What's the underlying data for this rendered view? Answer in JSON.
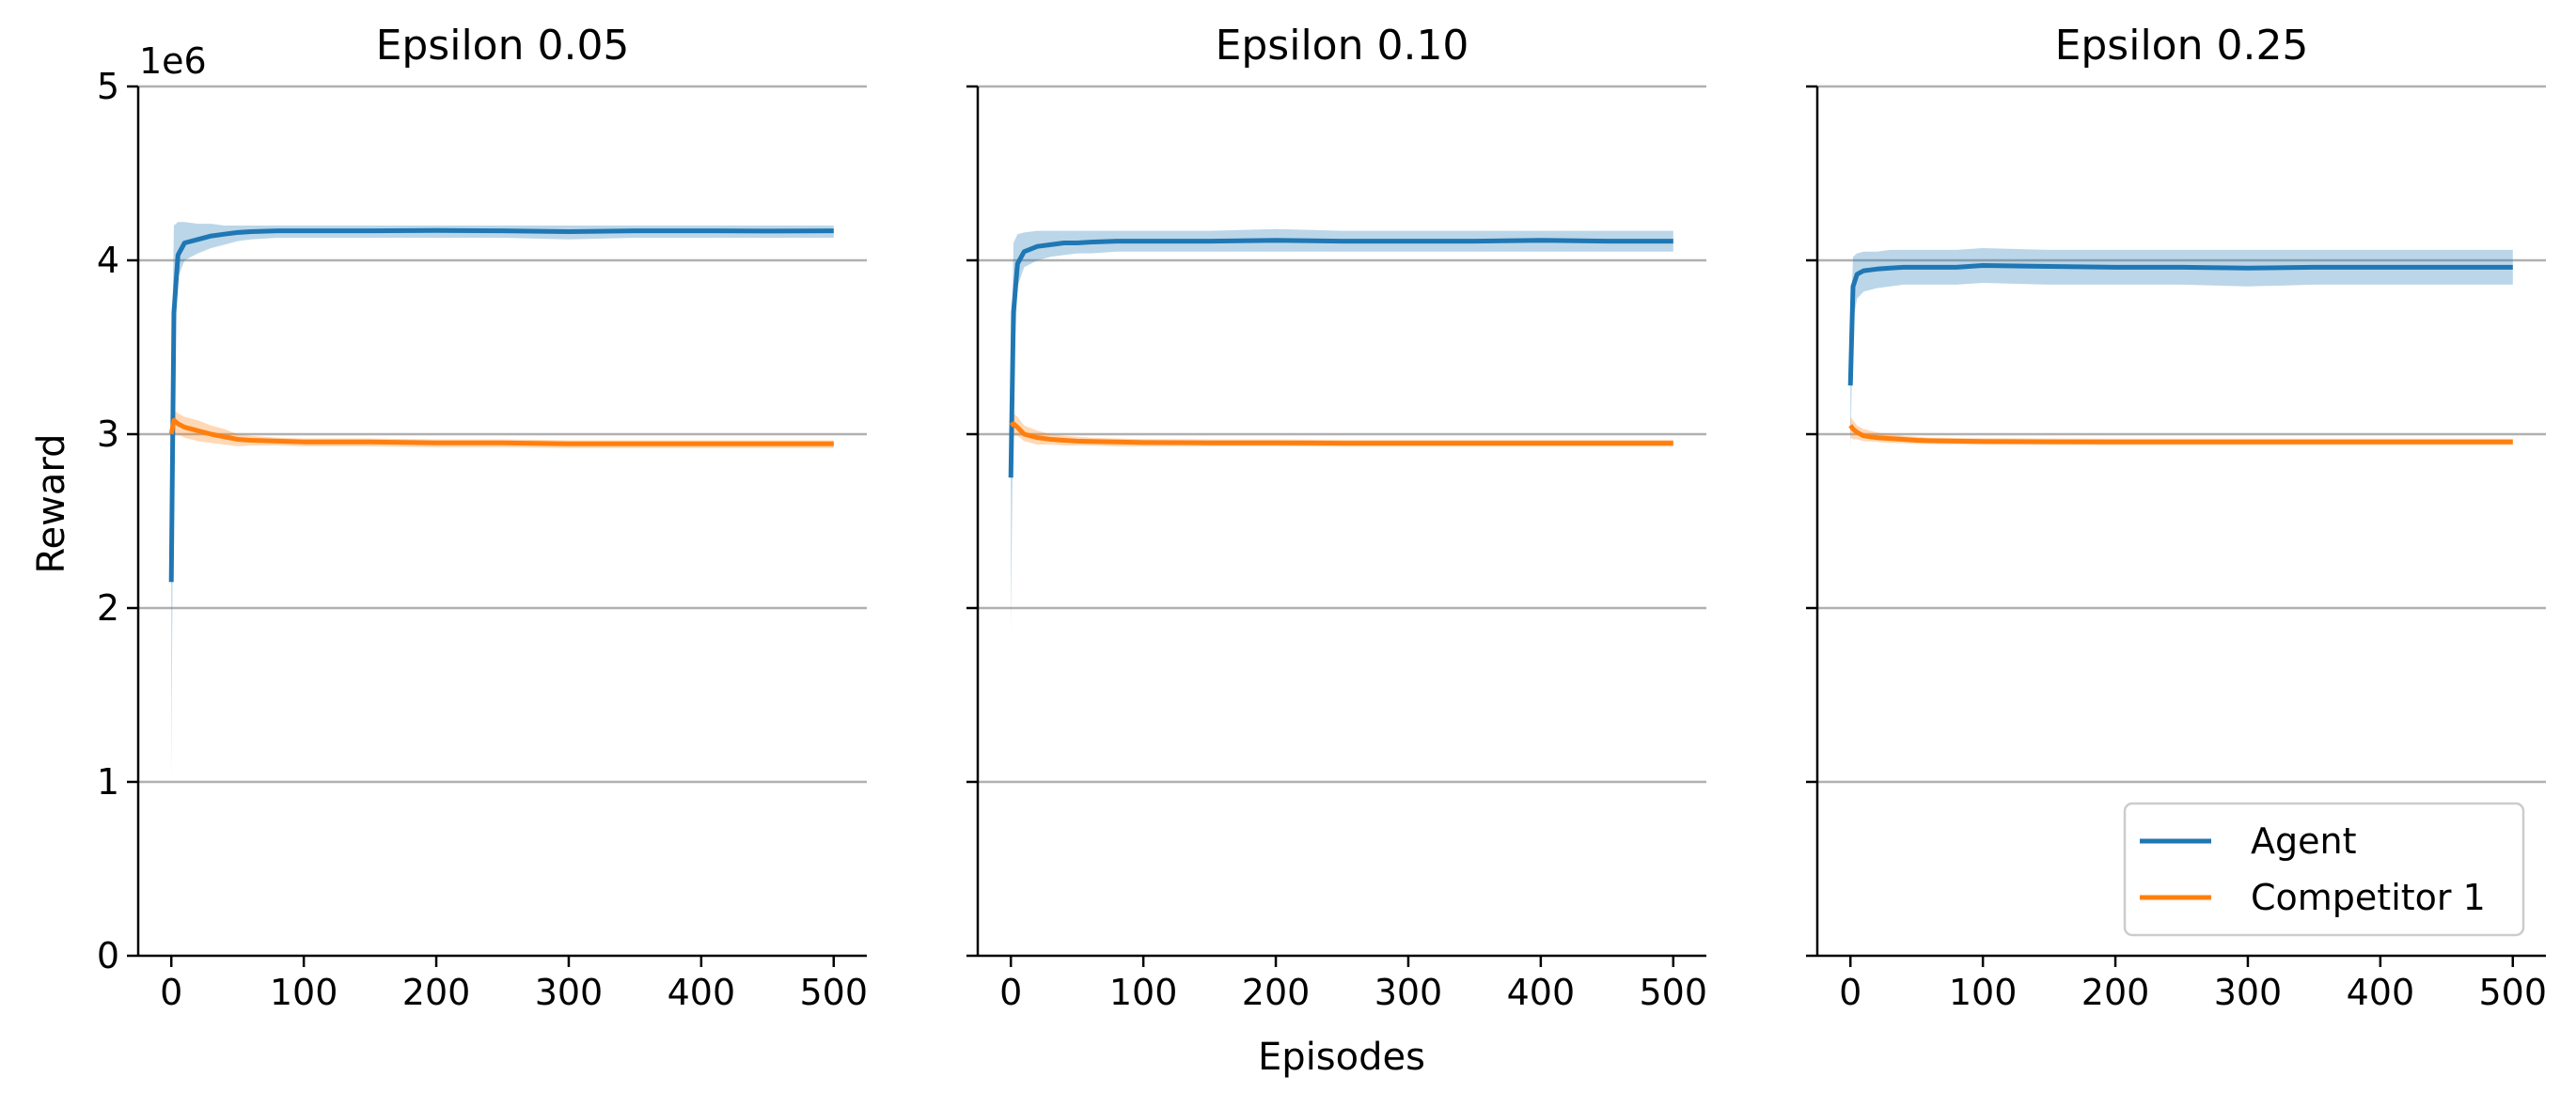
{
  "chart_data": {
    "type": "line",
    "xlabel": "Episodes",
    "ylabel": "Reward",
    "y_offset_label": "1e6",
    "x_ticks": [
      0,
      100,
      200,
      300,
      400,
      500
    ],
    "y_ticks": [
      0,
      1,
      2,
      3,
      4,
      5
    ],
    "xlim": [
      -25,
      525
    ],
    "ylim": [
      0,
      5
    ],
    "grid": "horizontal",
    "legend": {
      "placement": "lower-right",
      "entries": [
        {
          "name": "Agent",
          "color": "#1f77b4"
        },
        {
          "name": "Competitor 1",
          "color": "#ff7f0e"
        }
      ]
    },
    "panels": [
      {
        "title": "Epsilon 0.05",
        "series": [
          {
            "name": "Agent",
            "color": "#1f77b4",
            "x": [
              0,
              2,
              5,
              10,
              20,
              30,
              40,
              50,
              60,
              80,
              100,
              150,
              200,
              250,
              300,
              350,
              400,
              450,
              500
            ],
            "values": [
              2.15,
              3.7,
              4.03,
              4.1,
              4.12,
              4.14,
              4.15,
              4.16,
              4.165,
              4.17,
              4.17,
              4.17,
              4.172,
              4.17,
              4.165,
              4.17,
              4.17,
              4.168,
              4.17
            ],
            "band_upper": [
              3.25,
              4.2,
              4.22,
              4.22,
              4.21,
              4.21,
              4.2,
              4.2,
              4.2,
              4.2,
              4.2,
              4.2,
              4.2,
              4.2,
              4.2,
              4.2,
              4.2,
              4.2,
              4.2
            ],
            "band_lower": [
              1.03,
              3.4,
              3.9,
              4.0,
              4.04,
              4.07,
              4.09,
              4.11,
              4.12,
              4.13,
              4.13,
              4.13,
              4.13,
              4.13,
              4.12,
              4.13,
              4.13,
              4.13,
              4.13
            ]
          },
          {
            "name": "Competitor 1",
            "color": "#ff7f0e",
            "x": [
              0,
              2,
              5,
              10,
              20,
              30,
              40,
              50,
              60,
              80,
              100,
              150,
              200,
              250,
              300,
              350,
              400,
              450,
              500
            ],
            "values": [
              3.0,
              3.08,
              3.06,
              3.04,
              3.02,
              3.0,
              2.985,
              2.97,
              2.965,
              2.96,
              2.955,
              2.955,
              2.95,
              2.95,
              2.945,
              2.945,
              2.945,
              2.945,
              2.945
            ],
            "band_upper": [
              3.12,
              3.14,
              3.12,
              3.1,
              3.08,
              3.05,
              3.03,
              3.0,
              2.99,
              2.98,
              2.975,
              2.975,
              2.97,
              2.97,
              2.965,
              2.965,
              2.965,
              2.965,
              2.965
            ],
            "band_lower": [
              2.88,
              3.0,
              3.0,
              2.98,
              2.96,
              2.95,
              2.94,
              2.93,
              2.935,
              2.935,
              2.93,
              2.93,
              2.925,
              2.925,
              2.92,
              2.92,
              2.92,
              2.92,
              2.92
            ]
          }
        ]
      },
      {
        "title": "Epsilon 0.10",
        "series": [
          {
            "name": "Agent",
            "color": "#1f77b4",
            "x": [
              0,
              2,
              5,
              10,
              20,
              30,
              40,
              50,
              60,
              80,
              100,
              150,
              200,
              250,
              300,
              350,
              400,
              450,
              500
            ],
            "values": [
              2.75,
              3.7,
              3.98,
              4.05,
              4.08,
              4.09,
              4.1,
              4.1,
              4.105,
              4.11,
              4.11,
              4.11,
              4.115,
              4.11,
              4.11,
              4.11,
              4.115,
              4.11,
              4.11
            ],
            "band_upper": [
              3.3,
              4.1,
              4.15,
              4.16,
              4.17,
              4.17,
              4.17,
              4.17,
              4.17,
              4.17,
              4.17,
              4.17,
              4.18,
              4.17,
              4.17,
              4.17,
              4.17,
              4.17,
              4.17
            ],
            "band_lower": [
              1.87,
              3.3,
              3.85,
              3.96,
              4.0,
              4.02,
              4.03,
              4.04,
              4.04,
              4.05,
              4.05,
              4.05,
              4.05,
              4.05,
              4.05,
              4.05,
              4.05,
              4.05,
              4.05
            ]
          },
          {
            "name": "Competitor 1",
            "color": "#ff7f0e",
            "x": [
              0,
              2,
              5,
              10,
              20,
              30,
              40,
              50,
              60,
              80,
              100,
              150,
              200,
              250,
              300,
              350,
              400,
              450,
              500
            ],
            "values": [
              3.05,
              3.06,
              3.04,
              3.0,
              2.98,
              2.97,
              2.965,
              2.96,
              2.958,
              2.955,
              2.952,
              2.95,
              2.95,
              2.948,
              2.948,
              2.948,
              2.948,
              2.948,
              2.948
            ],
            "band_upper": [
              3.13,
              3.12,
              3.1,
              3.05,
              3.02,
              3.0,
              2.99,
              2.985,
              2.98,
              2.975,
              2.972,
              2.97,
              2.97,
              2.968,
              2.968,
              2.968,
              2.968,
              2.968,
              2.968
            ],
            "band_lower": [
              2.92,
              2.99,
              2.99,
              2.96,
              2.94,
              2.94,
              2.935,
              2.935,
              2.935,
              2.93,
              2.93,
              2.93,
              2.93,
              2.928,
              2.928,
              2.928,
              2.928,
              2.928,
              2.928
            ]
          }
        ]
      },
      {
        "title": "Epsilon 0.25",
        "series": [
          {
            "name": "Agent",
            "color": "#1f77b4",
            "x": [
              0,
              2,
              5,
              10,
              20,
              30,
              40,
              50,
              60,
              80,
              100,
              150,
              200,
              250,
              300,
              350,
              400,
              450,
              500
            ],
            "values": [
              3.28,
              3.85,
              3.92,
              3.94,
              3.95,
              3.955,
              3.96,
              3.96,
              3.96,
              3.96,
              3.97,
              3.965,
              3.96,
              3.96,
              3.955,
              3.96,
              3.96,
              3.96,
              3.96
            ],
            "band_upper": [
              3.6,
              4.02,
              4.04,
              4.05,
              4.05,
              4.06,
              4.06,
              4.06,
              4.06,
              4.06,
              4.07,
              4.06,
              4.06,
              4.06,
              4.06,
              4.06,
              4.06,
              4.06,
              4.06
            ],
            "band_lower": [
              2.9,
              3.65,
              3.78,
              3.82,
              3.84,
              3.85,
              3.86,
              3.86,
              3.86,
              3.86,
              3.87,
              3.86,
              3.86,
              3.86,
              3.85,
              3.86,
              3.86,
              3.86,
              3.86
            ]
          },
          {
            "name": "Competitor 1",
            "color": "#ff7f0e",
            "x": [
              0,
              2,
              5,
              10,
              20,
              30,
              40,
              50,
              60,
              80,
              100,
              150,
              200,
              250,
              300,
              350,
              400,
              450,
              500
            ],
            "values": [
              3.05,
              3.03,
              3.01,
              2.99,
              2.98,
              2.975,
              2.97,
              2.965,
              2.962,
              2.96,
              2.958,
              2.956,
              2.955,
              2.955,
              2.955,
              2.955,
              2.955,
              2.955,
              2.955
            ],
            "band_upper": [
              3.1,
              3.08,
              3.05,
              3.03,
              3.01,
              3.0,
              2.99,
              2.985,
              2.98,
              2.978,
              2.976,
              2.975,
              2.974,
              2.974,
              2.974,
              2.974,
              2.974,
              2.974,
              2.974
            ],
            "band_lower": [
              2.98,
              2.97,
              2.97,
              2.96,
              2.955,
              2.95,
              2.948,
              2.945,
              2.943,
              2.942,
              2.94,
              2.94,
              2.938,
              2.938,
              2.938,
              2.938,
              2.938,
              2.938,
              2.938
            ]
          }
        ]
      }
    ]
  }
}
